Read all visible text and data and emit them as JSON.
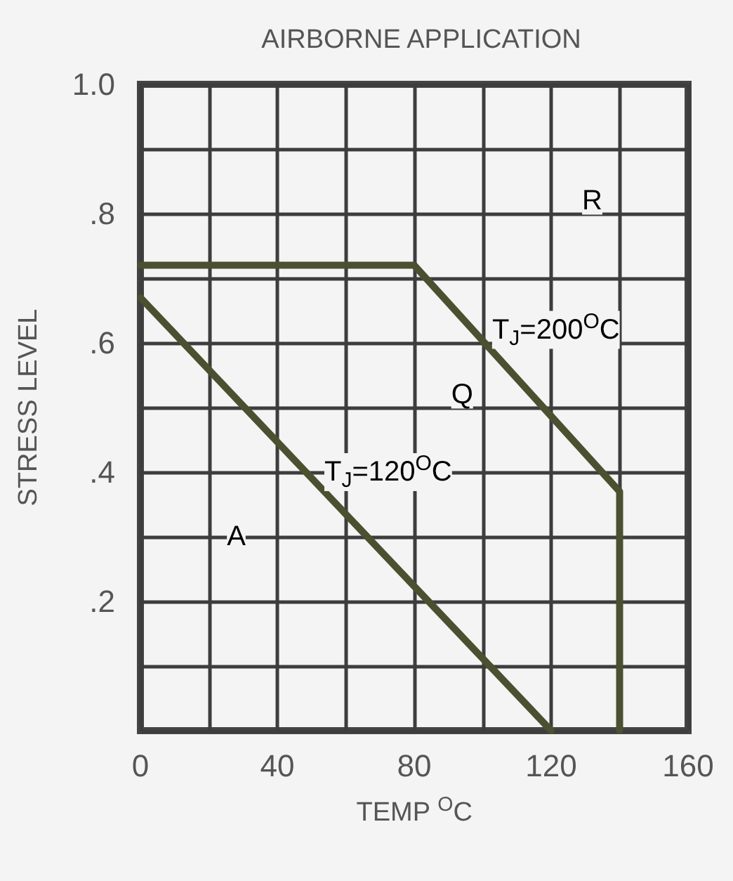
{
  "chart_data": {
    "type": "line",
    "title": "AIRBORNE APPLICATION",
    "xlabel": "TEMP $^{O}$C",
    "ylabel": "STRESS LEVEL",
    "series": [
      {
        "x": [
          0,
          80,
          140,
          140
        ],
        "values": [
          0.72,
          0.72,
          0.37,
          0
        ],
        "color": "#4b5030"
      },
      {
        "x": [
          0,
          120
        ],
        "values": [
          0.67,
          0
        ],
        "color": "#4b5030"
      }
    ],
    "xlim": [
      0,
      160
    ],
    "ylim": [
      0,
      1
    ],
    "xticks": [
      0,
      {
        "value": 20,
        "label": null
      },
      40,
      {
        "value": 60,
        "label": null
      },
      80,
      {
        "value": 100,
        "label": null
      },
      120,
      {
        "value": 140,
        "label": null
      },
      160
    ],
    "yticks": [
      {
        "value": 0,
        "label": null
      },
      {
        "value": 0.1,
        "label": null
      },
      {
        "value": 0.2,
        "label": ".2"
      },
      {
        "value": 0.3,
        "label": null
      },
      {
        "value": 0.4,
        "label": ".4"
      },
      {
        "value": 0.5,
        "label": null
      },
      {
        "value": 0.6,
        "label": ".6"
      },
      {
        "value": 0.7,
        "label": null
      },
      {
        "value": 0.8,
        "label": ".8"
      },
      {
        "value": 0.9,
        "label": null
      },
      {
        "value": 1,
        "label": "1.0"
      }
    ],
    "grid": true,
    "marker": "none",
    "line_style": "solid",
    "annotations": [
      {
        "text": "R",
        "x": 132,
        "y": 0.82
      },
      {
        "text": "T$_{J}$=200$^{O}$C",
        "x": 97,
        "y": 0.62
      },
      {
        "text": "Q",
        "x": 94,
        "y": 0.52
      },
      {
        "text": "T$_{J}$=120$^{O}$C",
        "x": 48,
        "y": 0.4
      },
      {
        "text": "A",
        "x": 28,
        "y": 0.3
      }
    ]
  }
}
